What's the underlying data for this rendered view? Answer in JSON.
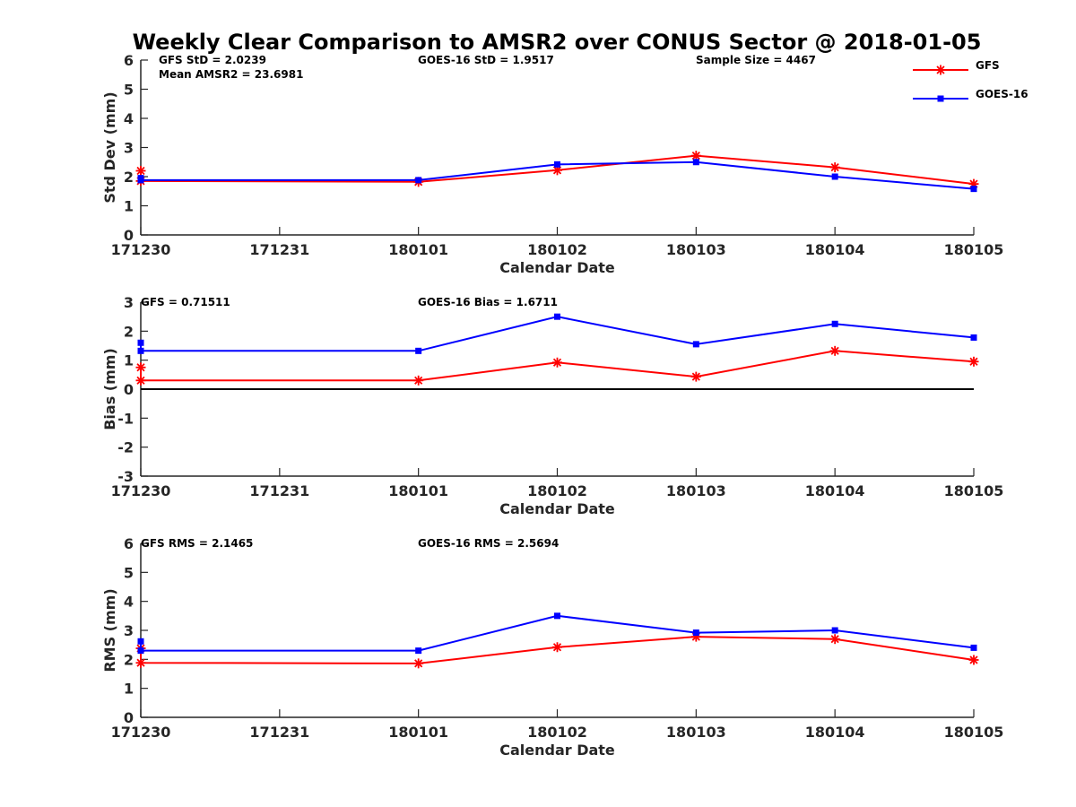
{
  "figure": {
    "title": "Weekly Clear Comparison to AMSR2 over CONUS Sector @ 2018-01-05"
  },
  "colors": {
    "GFS": "#ff0000",
    "GOES-16": "#0000ff",
    "zero_line": "#000000",
    "axis": "#262626"
  },
  "legend": {
    "placement": "top-right",
    "items": [
      {
        "label": "GFS",
        "marker": "asterisk"
      },
      {
        "label": "GOES-16",
        "marker": "square"
      }
    ]
  },
  "chart_data": [
    {
      "type": "line",
      "xlabel": "Calendar Date",
      "ylabel": "Std Dev (mm)",
      "x_ticks": [
        "171230",
        "171231",
        "180101",
        "180102",
        "180103",
        "180104",
        "180105"
      ],
      "x_range": [
        0,
        6
      ],
      "ylim": [
        0,
        6
      ],
      "y_ticks": [
        0,
        1,
        2,
        3,
        4,
        5,
        6
      ],
      "zero_line": false,
      "annotations": [
        "GFS StD = 2.0239",
        "Mean AMSR2 = 23.6981",
        "GOES-16 StD = 1.9517",
        "Sample Size = 4467"
      ],
      "series": [
        {
          "name": "GFS",
          "x": [
            0,
            0,
            2,
            3,
            4,
            5,
            6
          ],
          "values": [
            2.2,
            1.85,
            1.82,
            2.22,
            2.72,
            2.32,
            1.75
          ]
        },
        {
          "name": "GOES-16",
          "x": [
            0,
            0,
            2,
            3,
            4,
            5,
            6
          ],
          "values": [
            1.95,
            1.88,
            1.88,
            2.42,
            2.5,
            2.0,
            1.58
          ]
        }
      ]
    },
    {
      "type": "line",
      "xlabel": "Calendar Date",
      "ylabel": "Bias (mm)",
      "x_ticks": [
        "171230",
        "171231",
        "180101",
        "180102",
        "180103",
        "180104",
        "180105"
      ],
      "x_range": [
        0,
        6
      ],
      "ylim": [
        -3,
        3
      ],
      "y_ticks": [
        -3,
        -2,
        -1,
        0,
        1,
        2,
        3
      ],
      "zero_line": true,
      "annotations": [
        "GFS = 0.71511",
        "GOES-16 Bias  = 1.6711"
      ],
      "series": [
        {
          "name": "GFS",
          "x": [
            0,
            0,
            2,
            3,
            4,
            5,
            6
          ],
          "values": [
            0.75,
            0.3,
            0.3,
            0.92,
            0.43,
            1.32,
            0.95
          ]
        },
        {
          "name": "GOES-16",
          "x": [
            0,
            0,
            2,
            3,
            4,
            5,
            6
          ],
          "values": [
            1.6,
            1.32,
            1.32,
            2.5,
            1.55,
            2.25,
            1.78
          ]
        }
      ]
    },
    {
      "type": "line",
      "xlabel": "Calendar Date",
      "ylabel": "RMS (mm)",
      "x_ticks": [
        "171230",
        "171231",
        "180101",
        "180102",
        "180103",
        "180104",
        "180105"
      ],
      "x_range": [
        0,
        6
      ],
      "ylim": [
        0,
        6
      ],
      "y_ticks": [
        0,
        1,
        2,
        3,
        4,
        5,
        6
      ],
      "zero_line": false,
      "annotations": [
        "GFS RMS = 2.1465",
        "GOES-16 RMS = 2.5694"
      ],
      "series": [
        {
          "name": "GFS",
          "x": [
            0,
            0,
            2,
            3,
            4,
            5,
            6
          ],
          "values": [
            2.38,
            1.88,
            1.86,
            2.42,
            2.78,
            2.7,
            1.98
          ]
        },
        {
          "name": "GOES-16",
          "x": [
            0,
            0,
            2,
            3,
            4,
            5,
            6
          ],
          "values": [
            2.62,
            2.3,
            2.3,
            3.5,
            2.92,
            3.0,
            2.4
          ]
        }
      ]
    }
  ]
}
